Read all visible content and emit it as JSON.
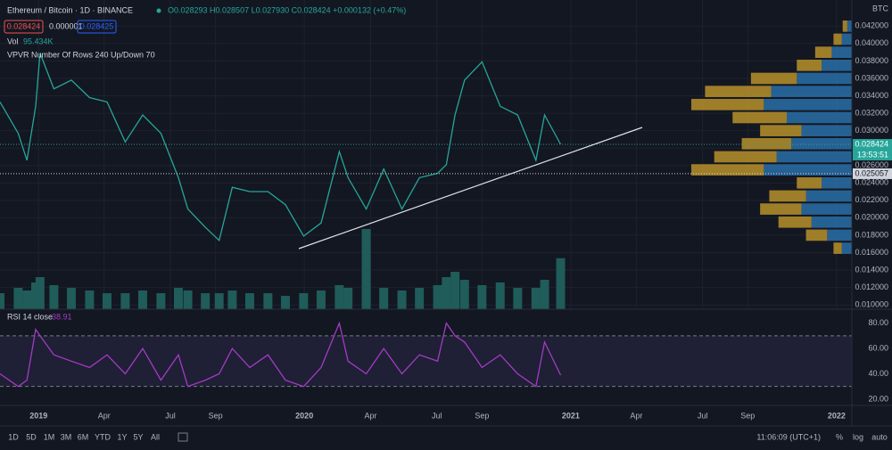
{
  "header": {
    "symbol": "Ethereum / Bitcoin · 1D · BINANCE",
    "ohlc": "O0.028293 H0.028507 L0.027930 C0.028424 +0.000132 (+0.47%)",
    "bid": "0.028424",
    "spread": "0.000001",
    "ask": "0.028425",
    "vol_label": "Vol",
    "vol_value": "95.434K",
    "vpvr": "VPVR Number Of Rows 240 Up/Down 70",
    "rsi_label": "RSI 14 close",
    "rsi_value": "38.91",
    "currency": "BTC"
  },
  "timeframes": [
    "1D",
    "5D",
    "1M",
    "3M",
    "6M",
    "YTD",
    "1Y",
    "5Y",
    "All"
  ],
  "footer": {
    "time": "11:06:09 (UTC+1)",
    "percent": "%",
    "log": "log",
    "auto": "auto"
  },
  "chart_data": [
    {
      "type": "line",
      "color": "#26a69a",
      "x": [
        -53,
        -28,
        -16,
        -4,
        2,
        21,
        45,
        70,
        94,
        119,
        143,
        168,
        192,
        205,
        229,
        248,
        266,
        290,
        315,
        339,
        364,
        388,
        413,
        425,
        450,
        474,
        499,
        523,
        548,
        560,
        572,
        585,
        609,
        634,
        658,
        683,
        695,
        717
      ],
      "values": [
        0.0333,
        0.0297,
        0.0266,
        0.0328,
        0.0389,
        0.0348,
        0.0358,
        0.0338,
        0.0333,
        0.0287,
        0.0318,
        0.0297,
        0.0246,
        0.021,
        0.0189,
        0.0174,
        0.0235,
        0.023,
        0.023,
        0.0215,
        0.0179,
        0.0194,
        0.0276,
        0.0246,
        0.021,
        0.0256,
        0.021,
        0.0246,
        0.0251,
        0.0261,
        0.0318,
        0.0358,
        0.0379,
        0.0328,
        0.0318,
        0.0266,
        0.0318,
        0.028424
      ],
      "volume": [
        30,
        40,
        35,
        50,
        60,
        45,
        40,
        35,
        30,
        30,
        35,
        30,
        40,
        35,
        30,
        30,
        35,
        30,
        30,
        25,
        30,
        35,
        45,
        40,
        150,
        40,
        35,
        40,
        45,
        60,
        70,
        55,
        45,
        50,
        40,
        40,
        55,
        95.434
      ],
      "volume_color": "#1f5c5a",
      "profile": {
        "levels": [
          0.042,
          0.0405,
          0.039,
          0.0375,
          0.036,
          0.0345,
          0.033,
          0.0315,
          0.03,
          0.0285,
          0.027,
          0.0255,
          0.024,
          0.0225,
          0.021,
          0.0195,
          0.018,
          0.0165
        ],
        "up": [
          5,
          11,
          22,
          33,
          60,
          88,
          96,
          71,
          55,
          66,
          82,
          96,
          33,
          50,
          55,
          44,
          27,
          11
        ],
        "down": [
          5,
          9,
          18,
          27,
          50,
          72,
          79,
          59,
          45,
          54,
          68,
          79,
          27,
          40,
          45,
          36,
          23,
          9
        ],
        "up_color": "#2a6fa8",
        "down_color": "#b8902a"
      },
      "price_lines": [
        {
          "value": 0.028424,
          "label": "0.028424",
          "color": "#26a69a"
        },
        {
          "value": 0.025057,
          "label": "0.025057",
          "color": "#d1d4dc"
        }
      ],
      "countdown": "13:53:51",
      "xlim": [
        -53,
        1117
      ],
      "xticks": [
        {
          "value": 0,
          "label": "2019"
        },
        {
          "value": 90,
          "label": "Apr"
        },
        {
          "value": 181,
          "label": "Jul"
        },
        {
          "value": 243,
          "label": "Sep"
        },
        {
          "value": 365,
          "label": "2020"
        },
        {
          "value": 456,
          "label": "Apr"
        },
        {
          "value": 547,
          "label": "Jul"
        },
        {
          "value": 609,
          "label": "Sep"
        },
        {
          "value": 731,
          "label": "2021"
        },
        {
          "value": 821,
          "label": "Apr"
        },
        {
          "value": 912,
          "label": "Jul"
        },
        {
          "value": 974,
          "label": "Sep"
        },
        {
          "value": 1096,
          "label": "2022"
        }
      ],
      "ylim": [
        0.0095,
        0.045
      ],
      "yticks": [
        {
          "value": 0.01,
          "label": "0.010000"
        },
        {
          "value": 0.012,
          "label": "0.012000"
        },
        {
          "value": 0.014,
          "label": "0.014000"
        },
        {
          "value": 0.016,
          "label": "0.016000"
        },
        {
          "value": 0.018,
          "label": "0.018000"
        },
        {
          "value": 0.02,
          "label": "0.020000"
        },
        {
          "value": 0.022,
          "label": "0.022000"
        },
        {
          "value": 0.024,
          "label": "0.024000"
        },
        {
          "value": 0.026,
          "label": "0.026000"
        },
        {
          "value": 0.028,
          "label": "0.028000"
        },
        {
          "value": 0.03,
          "label": "0.030000"
        },
        {
          "value": 0.032,
          "label": "0.032000"
        },
        {
          "value": 0.034,
          "label": "0.034000"
        },
        {
          "value": 0.036,
          "label": "0.036000"
        },
        {
          "value": 0.038,
          "label": "0.038000"
        },
        {
          "value": 0.04,
          "label": "0.040000"
        },
        {
          "value": 0.042,
          "label": "0.042000"
        }
      ],
      "grid": true
    },
    {
      "type": "line",
      "color": "#a23cc4",
      "x": [
        -53,
        -28,
        -16,
        -4,
        2,
        21,
        45,
        70,
        94,
        119,
        143,
        168,
        192,
        205,
        229,
        248,
        266,
        290,
        315,
        339,
        364,
        388,
        413,
        425,
        450,
        474,
        499,
        523,
        548,
        560,
        572,
        585,
        609,
        634,
        658,
        683,
        695,
        717
      ],
      "values": [
        40,
        30,
        35,
        75,
        70,
        55,
        50,
        45,
        55,
        40,
        60,
        35,
        55,
        30,
        35,
        40,
        60,
        45,
        55,
        35,
        30,
        45,
        80,
        50,
        40,
        60,
        40,
        55,
        50,
        80,
        70,
        65,
        45,
        55,
        40,
        30,
        65,
        38.91
      ],
      "levels": [
        30,
        70
      ],
      "xlim": [
        -53,
        1117
      ],
      "ylim": [
        15,
        91
      ],
      "yticks": [
        {
          "value": 20,
          "label": "20.00"
        },
        {
          "value": 40,
          "label": "40.00"
        },
        {
          "value": 60,
          "label": "60.00"
        },
        {
          "value": 80,
          "label": "80.00"
        }
      ],
      "grid": true
    }
  ]
}
